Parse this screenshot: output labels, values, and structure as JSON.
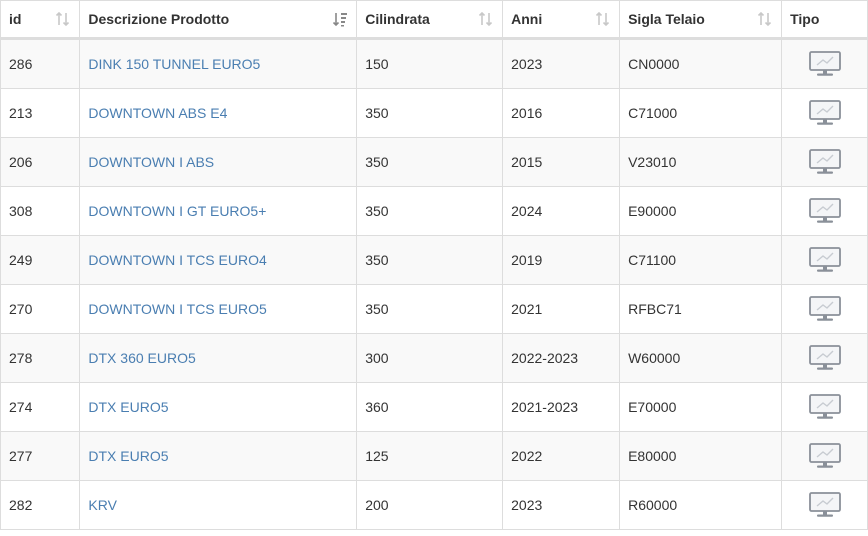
{
  "headers": {
    "id": "id",
    "descrizione": "Descrizione Prodotto",
    "cilindrata": "Cilindrata",
    "anni": "Anni",
    "sigla": "Sigla Telaio",
    "tipo": "Tipo"
  },
  "sort": {
    "column": "descrizione",
    "direction": "ascending"
  },
  "icons": {
    "sort_neutral": "sort-arrows-icon",
    "sort_active": "sort-alpha-down-icon",
    "tipo": "monitor-icon"
  },
  "colors": {
    "link": "#4a7eb1",
    "border": "#dddddd",
    "stripe": "#f9f9f9",
    "icon": "#8a9099"
  },
  "rows": [
    {
      "id": "286",
      "descrizione": "DINK 150 TUNNEL EURO5",
      "cilindrata": "150",
      "anni": "2023",
      "sigla": "CN0000"
    },
    {
      "id": "213",
      "descrizione": "DOWNTOWN ABS E4",
      "cilindrata": "350",
      "anni": "2016",
      "sigla": "C71000"
    },
    {
      "id": "206",
      "descrizione": "DOWNTOWN I ABS",
      "cilindrata": "350",
      "anni": "2015",
      "sigla": "V23010"
    },
    {
      "id": "308",
      "descrizione": "DOWNTOWN I GT EURO5+",
      "cilindrata": "350",
      "anni": "2024",
      "sigla": "E90000"
    },
    {
      "id": "249",
      "descrizione": "DOWNTOWN I TCS EURO4",
      "cilindrata": "350",
      "anni": "2019",
      "sigla": "C71100"
    },
    {
      "id": "270",
      "descrizione": "DOWNTOWN I TCS EURO5",
      "cilindrata": "350",
      "anni": "2021",
      "sigla": "RFBC71"
    },
    {
      "id": "278",
      "descrizione": "DTX 360 EURO5",
      "cilindrata": "300",
      "anni": "2022-2023",
      "sigla": "W60000"
    },
    {
      "id": "274",
      "descrizione": "DTX EURO5",
      "cilindrata": "360",
      "anni": "2021-2023",
      "sigla": "E70000"
    },
    {
      "id": "277",
      "descrizione": "DTX EURO5",
      "cilindrata": "125",
      "anni": "2022",
      "sigla": "E80000"
    },
    {
      "id": "282",
      "descrizione": "KRV",
      "cilindrata": "200",
      "anni": "2023",
      "sigla": "R60000"
    }
  ]
}
